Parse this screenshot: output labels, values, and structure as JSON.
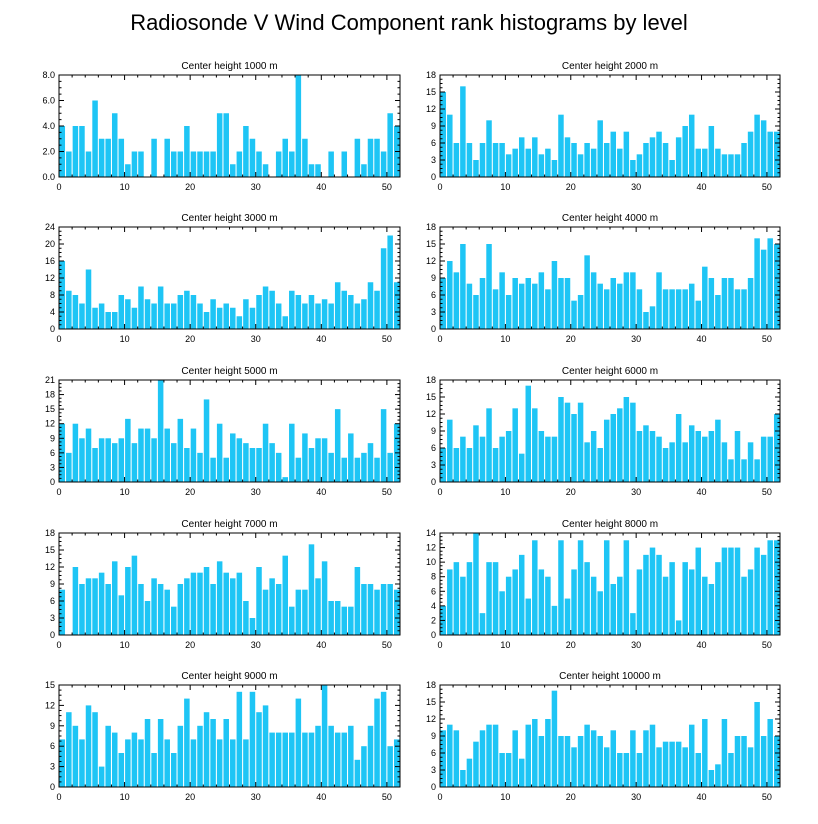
{
  "figure": {
    "title": "Radiosonde V Wind Component rank histograms by level",
    "colors": {
      "bar": "#1EC5F5",
      "axis": "#000000",
      "text": "#000000"
    }
  },
  "chart_data": [
    {
      "type": "bar",
      "title": "Center height 1000 m",
      "xlabel": "",
      "ylabel": "",
      "xlim": [
        0,
        52
      ],
      "ylim": [
        0,
        8
      ],
      "xticks": [
        0,
        10,
        20,
        30,
        40,
        50
      ],
      "yticks": [
        0,
        2,
        4,
        6,
        8
      ],
      "ytick_labels": [
        "0.0",
        "2.0",
        "4.0",
        "6.0",
        "8.0"
      ],
      "x": [
        0,
        1,
        2,
        3,
        4,
        5,
        6,
        7,
        8,
        9,
        10,
        11,
        12,
        13,
        14,
        15,
        16,
        17,
        18,
        19,
        20,
        21,
        22,
        23,
        24,
        25,
        26,
        27,
        28,
        29,
        30,
        31,
        32,
        33,
        34,
        35,
        36,
        37,
        38,
        39,
        40,
        41,
        42,
        43,
        44,
        45,
        46,
        47,
        48,
        49,
        50,
        51
      ],
      "values": [
        4,
        2,
        4,
        4,
        2,
        6,
        3,
        3,
        5,
        3,
        1,
        2,
        2,
        0,
        3,
        0,
        3,
        2,
        2,
        4,
        2,
        2,
        2,
        2,
        5,
        5,
        1,
        2,
        4,
        3,
        2,
        1,
        0,
        2,
        3,
        2,
        8,
        3,
        1,
        1,
        0,
        2,
        0,
        2,
        0,
        3,
        1,
        3,
        3,
        2,
        5,
        4
      ]
    },
    {
      "type": "bar",
      "title": "Center height 2000 m",
      "xlabel": "",
      "ylabel": "",
      "xlim": [
        0,
        52
      ],
      "ylim": [
        0,
        18
      ],
      "xticks": [
        0,
        10,
        20,
        30,
        40,
        50
      ],
      "yticks": [
        0,
        3,
        6,
        9,
        12,
        15,
        18
      ],
      "ytick_labels": [
        "0",
        "3",
        "6",
        "9",
        "12",
        "15",
        "18"
      ],
      "x": [
        0,
        1,
        2,
        3,
        4,
        5,
        6,
        7,
        8,
        9,
        10,
        11,
        12,
        13,
        14,
        15,
        16,
        17,
        18,
        19,
        20,
        21,
        22,
        23,
        24,
        25,
        26,
        27,
        28,
        29,
        30,
        31,
        32,
        33,
        34,
        35,
        36,
        37,
        38,
        39,
        40,
        41,
        42,
        43,
        44,
        45,
        46,
        47,
        48,
        49,
        50,
        51
      ],
      "values": [
        15,
        11,
        6,
        16,
        6,
        3,
        6,
        10,
        6,
        6,
        4,
        5,
        7,
        5,
        7,
        4,
        5,
        3,
        11,
        7,
        6,
        4,
        6,
        5,
        10,
        6,
        8,
        5,
        8,
        3,
        4,
        6,
        7,
        8,
        6,
        3,
        7,
        9,
        11,
        5,
        5,
        9,
        5,
        4,
        4,
        4,
        6,
        8,
        11,
        10,
        8,
        8
      ]
    },
    {
      "type": "bar",
      "title": "Center height 3000 m",
      "xlabel": "",
      "ylabel": "",
      "xlim": [
        0,
        52
      ],
      "ylim": [
        0,
        24
      ],
      "xticks": [
        0,
        10,
        20,
        30,
        40,
        50
      ],
      "yticks": [
        0,
        4,
        8,
        12,
        16,
        20,
        24
      ],
      "ytick_labels": [
        "0",
        "4",
        "8",
        "12",
        "16",
        "20",
        "24"
      ],
      "x": [
        0,
        1,
        2,
        3,
        4,
        5,
        6,
        7,
        8,
        9,
        10,
        11,
        12,
        13,
        14,
        15,
        16,
        17,
        18,
        19,
        20,
        21,
        22,
        23,
        24,
        25,
        26,
        27,
        28,
        29,
        30,
        31,
        32,
        33,
        34,
        35,
        36,
        37,
        38,
        39,
        40,
        41,
        42,
        43,
        44,
        45,
        46,
        47,
        48,
        49,
        50,
        51
      ],
      "values": [
        16,
        9,
        8,
        6,
        14,
        5,
        6,
        4,
        4,
        8,
        7,
        5,
        10,
        7,
        6,
        10,
        6,
        6,
        8,
        9,
        8,
        6,
        4,
        7,
        5,
        6,
        5,
        3,
        7,
        5,
        8,
        10,
        9,
        6,
        3,
        9,
        8,
        6,
        8,
        6,
        7,
        6,
        11,
        9,
        8,
        6,
        7,
        11,
        9,
        19,
        22,
        11
      ]
    },
    {
      "type": "bar",
      "title": "Center height 4000 m",
      "xlabel": "",
      "ylabel": "",
      "xlim": [
        0,
        52
      ],
      "ylim": [
        0,
        18
      ],
      "xticks": [
        0,
        10,
        20,
        30,
        40,
        50
      ],
      "yticks": [
        0,
        3,
        6,
        9,
        12,
        15,
        18
      ],
      "ytick_labels": [
        "0",
        "3",
        "6",
        "9",
        "12",
        "15",
        "18"
      ],
      "x": [
        0,
        1,
        2,
        3,
        4,
        5,
        6,
        7,
        8,
        9,
        10,
        11,
        12,
        13,
        14,
        15,
        16,
        17,
        18,
        19,
        20,
        21,
        22,
        23,
        24,
        25,
        26,
        27,
        28,
        29,
        30,
        31,
        32,
        33,
        34,
        35,
        36,
        37,
        38,
        39,
        40,
        41,
        42,
        43,
        44,
        45,
        46,
        47,
        48,
        49,
        50,
        51
      ],
      "values": [
        9,
        12,
        10,
        15,
        8,
        6,
        9,
        15,
        7,
        10,
        6,
        9,
        8,
        9,
        8,
        10,
        7,
        12,
        9,
        9,
        5,
        6,
        13,
        10,
        8,
        7,
        9,
        8,
        10,
        10,
        7,
        3,
        4,
        10,
        7,
        7,
        7,
        7,
        8,
        5,
        11,
        9,
        6,
        9,
        9,
        7,
        7,
        9,
        16,
        14,
        16,
        15
      ]
    },
    {
      "type": "bar",
      "title": "Center height 5000 m",
      "xlabel": "",
      "ylabel": "",
      "xlim": [
        0,
        52
      ],
      "ylim": [
        0,
        21
      ],
      "xticks": [
        0,
        10,
        20,
        30,
        40,
        50
      ],
      "yticks": [
        0,
        3,
        6,
        9,
        12,
        15,
        18,
        21
      ],
      "ytick_labels": [
        "0",
        "3",
        "6",
        "9",
        "12",
        "15",
        "18",
        "21"
      ],
      "x": [
        0,
        1,
        2,
        3,
        4,
        5,
        6,
        7,
        8,
        9,
        10,
        11,
        12,
        13,
        14,
        15,
        16,
        17,
        18,
        19,
        20,
        21,
        22,
        23,
        24,
        25,
        26,
        27,
        28,
        29,
        30,
        31,
        32,
        33,
        34,
        35,
        36,
        37,
        38,
        39,
        40,
        41,
        42,
        43,
        44,
        45,
        46,
        47,
        48,
        49,
        50,
        51
      ],
      "values": [
        12,
        6,
        12,
        9,
        11,
        7,
        9,
        9,
        8,
        9,
        13,
        8,
        11,
        11,
        9,
        21,
        11,
        8,
        13,
        7,
        11,
        6,
        17,
        5,
        12,
        5,
        10,
        9,
        8,
        7,
        7,
        12,
        8,
        6,
        1,
        12,
        5,
        10,
        7,
        9,
        9,
        6,
        15,
        5,
        10,
        5,
        6,
        8,
        5,
        15,
        6,
        12
      ]
    },
    {
      "type": "bar",
      "title": "Center height 6000 m",
      "xlabel": "",
      "ylabel": "",
      "xlim": [
        0,
        52
      ],
      "ylim": [
        0,
        18
      ],
      "xticks": [
        0,
        10,
        20,
        30,
        40,
        50
      ],
      "yticks": [
        0,
        3,
        6,
        9,
        12,
        15,
        18
      ],
      "ytick_labels": [
        "0",
        "3",
        "6",
        "9",
        "12",
        "15",
        "18"
      ],
      "x": [
        0,
        1,
        2,
        3,
        4,
        5,
        6,
        7,
        8,
        9,
        10,
        11,
        12,
        13,
        14,
        15,
        16,
        17,
        18,
        19,
        20,
        21,
        22,
        23,
        24,
        25,
        26,
        27,
        28,
        29,
        30,
        31,
        32,
        33,
        34,
        35,
        36,
        37,
        38,
        39,
        40,
        41,
        42,
        43,
        44,
        45,
        46,
        47,
        48,
        49,
        50,
        51
      ],
      "values": [
        6,
        11,
        6,
        8,
        6,
        10,
        8,
        13,
        6,
        8,
        9,
        13,
        5,
        17,
        13,
        9,
        8,
        8,
        15,
        14,
        12,
        14,
        7,
        9,
        6,
        11,
        12,
        13,
        15,
        14,
        9,
        10,
        9,
        8,
        6,
        7,
        12,
        7,
        10,
        9,
        8,
        9,
        11,
        7,
        4,
        9,
        4,
        7,
        4,
        8,
        8,
        12
      ]
    },
    {
      "type": "bar",
      "title": "Center height 7000 m",
      "xlabel": "",
      "ylabel": "",
      "xlim": [
        0,
        52
      ],
      "ylim": [
        0,
        18
      ],
      "xticks": [
        0,
        10,
        20,
        30,
        40,
        50
      ],
      "yticks": [
        0,
        3,
        6,
        9,
        12,
        15,
        18
      ],
      "ytick_labels": [
        "0",
        "3",
        "6",
        "9",
        "12",
        "15",
        "18"
      ],
      "x": [
        0,
        1,
        2,
        3,
        4,
        5,
        6,
        7,
        8,
        9,
        10,
        11,
        12,
        13,
        14,
        15,
        16,
        17,
        18,
        19,
        20,
        21,
        22,
        23,
        24,
        25,
        26,
        27,
        28,
        29,
        30,
        31,
        32,
        33,
        34,
        35,
        36,
        37,
        38,
        39,
        40,
        41,
        42,
        43,
        44,
        45,
        46,
        47,
        48,
        49,
        50,
        51
      ],
      "values": [
        8,
        0,
        12,
        9,
        10,
        10,
        11,
        9,
        13,
        7,
        12,
        14,
        9,
        6,
        10,
        9,
        8,
        5,
        9,
        10,
        11,
        11,
        12,
        9,
        13,
        11,
        10,
        11,
        6,
        3,
        12,
        8,
        10,
        9,
        14,
        5,
        8,
        8,
        16,
        10,
        13,
        6,
        6,
        5,
        5,
        12,
        9,
        9,
        8,
        9,
        9,
        8
      ]
    },
    {
      "type": "bar",
      "title": "Center height 8000 m",
      "xlabel": "",
      "ylabel": "",
      "xlim": [
        0,
        52
      ],
      "ylim": [
        0,
        14
      ],
      "xticks": [
        0,
        10,
        20,
        30,
        40,
        50
      ],
      "yticks": [
        0,
        2,
        4,
        6,
        8,
        10,
        12,
        14
      ],
      "ytick_labels": [
        "0",
        "2",
        "4",
        "6",
        "8",
        "10",
        "12",
        "14"
      ],
      "x": [
        0,
        1,
        2,
        3,
        4,
        5,
        6,
        7,
        8,
        9,
        10,
        11,
        12,
        13,
        14,
        15,
        16,
        17,
        18,
        19,
        20,
        21,
        22,
        23,
        24,
        25,
        26,
        27,
        28,
        29,
        30,
        31,
        32,
        33,
        34,
        35,
        36,
        37,
        38,
        39,
        40,
        41,
        42,
        43,
        44,
        45,
        46,
        47,
        48,
        49,
        50,
        51
      ],
      "values": [
        4,
        9,
        10,
        8,
        10,
        14,
        3,
        10,
        10,
        6,
        8,
        9,
        11,
        5,
        13,
        9,
        8,
        4,
        13,
        5,
        9,
        13,
        10,
        8,
        6,
        13,
        7,
        8,
        13,
        3,
        9,
        11,
        12,
        11,
        8,
        10,
        2,
        10,
        9,
        12,
        8,
        7,
        10,
        12,
        12,
        12,
        8,
        9,
        12,
        11,
        13,
        13
      ]
    },
    {
      "type": "bar",
      "title": "Center height 9000 m",
      "xlabel": "",
      "ylabel": "",
      "xlim": [
        0,
        52
      ],
      "ylim": [
        0,
        15
      ],
      "xticks": [
        0,
        10,
        20,
        30,
        40,
        50
      ],
      "yticks": [
        0,
        3,
        6,
        9,
        12,
        15
      ],
      "ytick_labels": [
        "0",
        "3",
        "6",
        "9",
        "12",
        "15"
      ],
      "x": [
        0,
        1,
        2,
        3,
        4,
        5,
        6,
        7,
        8,
        9,
        10,
        11,
        12,
        13,
        14,
        15,
        16,
        17,
        18,
        19,
        20,
        21,
        22,
        23,
        24,
        25,
        26,
        27,
        28,
        29,
        30,
        31,
        32,
        33,
        34,
        35,
        36,
        37,
        38,
        39,
        40,
        41,
        42,
        43,
        44,
        45,
        46,
        47,
        48,
        49,
        50,
        51
      ],
      "values": [
        7,
        11,
        9,
        7,
        12,
        11,
        3,
        9,
        8,
        5,
        7,
        8,
        7,
        10,
        5,
        10,
        7,
        5,
        9,
        13,
        7,
        9,
        11,
        10,
        7,
        10,
        7,
        14,
        7,
        14,
        11,
        12,
        8,
        8,
        8,
        8,
        13,
        8,
        8,
        9,
        15,
        9,
        8,
        8,
        9,
        4,
        6,
        9,
        13,
        14,
        6,
        7
      ]
    },
    {
      "type": "bar",
      "title": "Center height 10000 m",
      "xlabel": "",
      "ylabel": "",
      "xlim": [
        0,
        52
      ],
      "ylim": [
        0,
        18
      ],
      "xticks": [
        0,
        10,
        20,
        30,
        40,
        50
      ],
      "yticks": [
        0,
        3,
        6,
        9,
        12,
        15,
        18
      ],
      "ytick_labels": [
        "0",
        "3",
        "6",
        "9",
        "12",
        "15",
        "18"
      ],
      "x": [
        0,
        1,
        2,
        3,
        4,
        5,
        6,
        7,
        8,
        9,
        10,
        11,
        12,
        13,
        14,
        15,
        16,
        17,
        18,
        19,
        20,
        21,
        22,
        23,
        24,
        25,
        26,
        27,
        28,
        29,
        30,
        31,
        32,
        33,
        34,
        35,
        36,
        37,
        38,
        39,
        40,
        41,
        42,
        43,
        44,
        45,
        46,
        47,
        48,
        49,
        50,
        51
      ],
      "values": [
        10,
        11,
        10,
        3,
        5,
        8,
        10,
        11,
        11,
        6,
        6,
        10,
        5,
        11,
        12,
        9,
        12,
        17,
        9,
        9,
        7,
        9,
        11,
        10,
        9,
        7,
        10,
        6,
        6,
        10,
        6,
        10,
        11,
        7,
        8,
        8,
        8,
        7,
        11,
        6,
        12,
        3,
        4,
        12,
        6,
        9,
        9,
        7,
        15,
        9,
        12,
        9
      ]
    }
  ]
}
